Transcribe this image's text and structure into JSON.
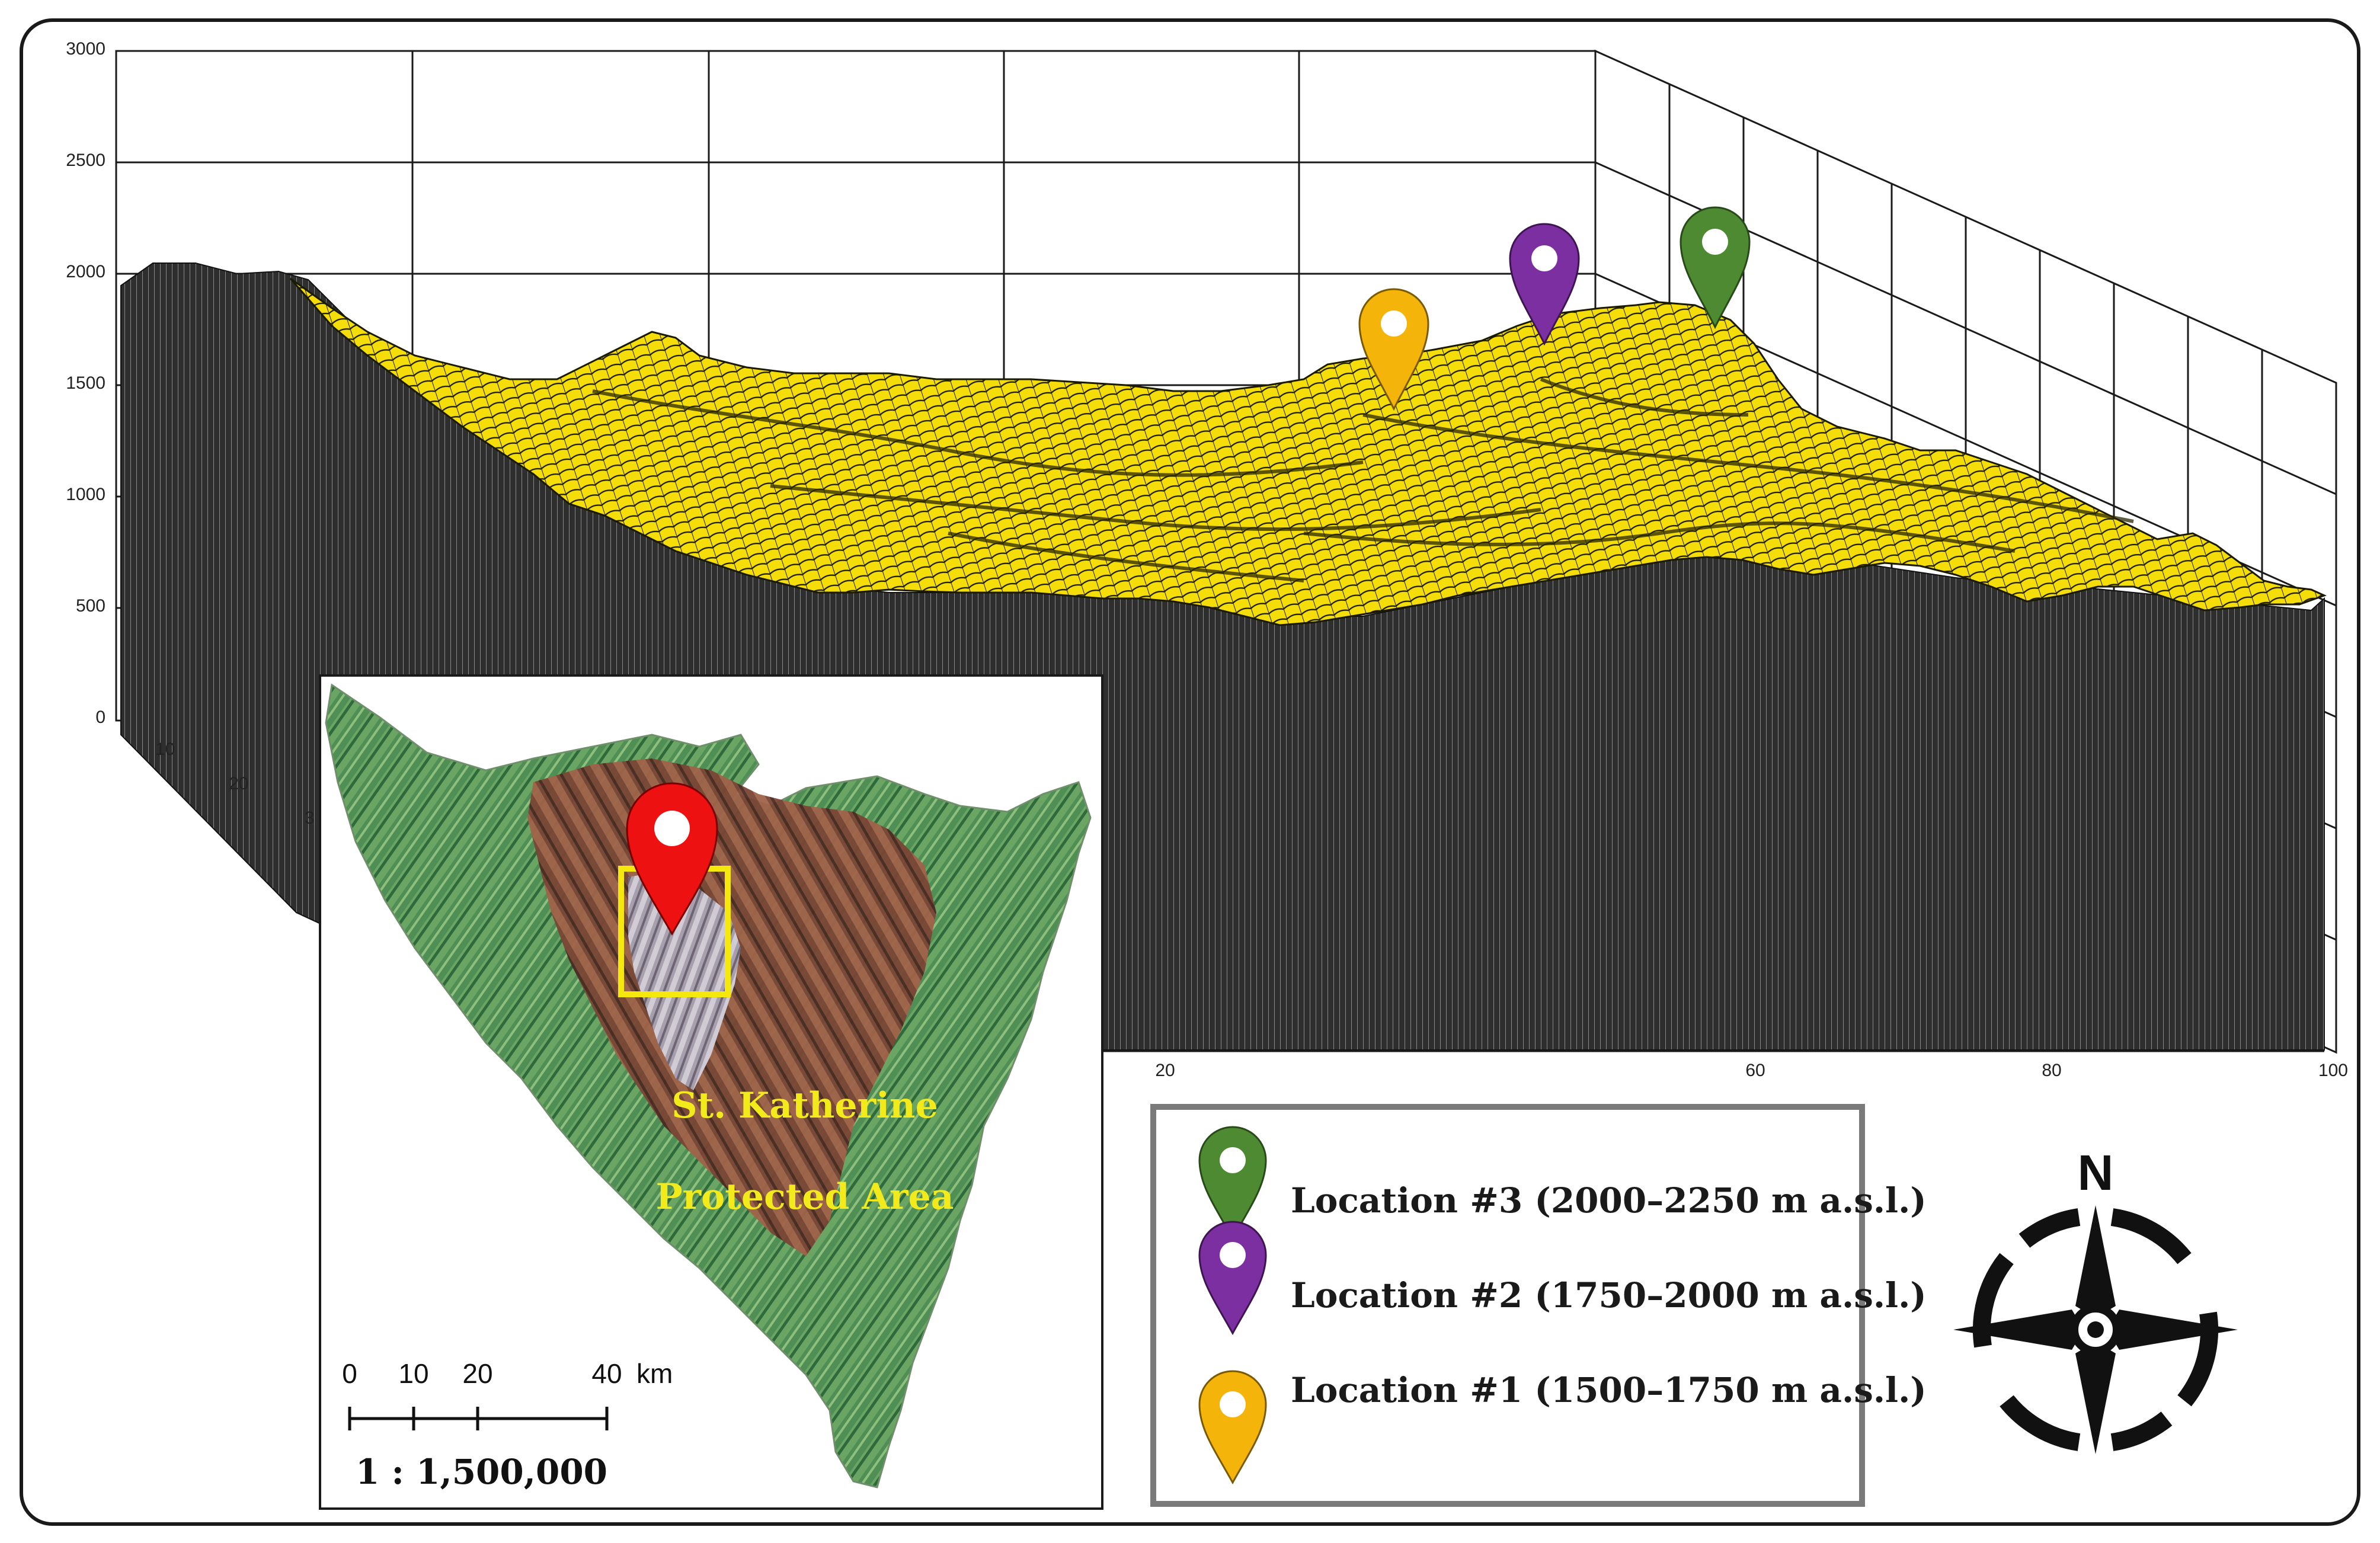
{
  "profile": {
    "y_axis_ticks": [
      "0",
      "500",
      "1000",
      "1500",
      "2000",
      "2500",
      "3000"
    ],
    "left_depth_ticks": [
      "10",
      "20",
      "3"
    ],
    "bottom_axis_ticks": [
      "20",
      "60",
      "80",
      "100"
    ]
  },
  "markers": [
    {
      "name": "Location #1",
      "color": "#f5b40a"
    },
    {
      "name": "Location #2",
      "color": "#7b2fa0"
    },
    {
      "name": "Location #3",
      "color": "#4e8a32"
    }
  ],
  "inset_map": {
    "area_label_line1": "St. Katherine",
    "area_label_line2": "Protected Area",
    "marker_color": "#ee1111",
    "study_box_color": "#f5e80c",
    "scale_ticks": [
      "0",
      "10",
      "20",
      "40"
    ],
    "scale_unit": "km",
    "scale_ratio": "1 : 1,500,000"
  },
  "legend": {
    "items": [
      {
        "label": "Location #3 (2000–2250 m a.s.l.)",
        "color": "#4e8a32"
      },
      {
        "label": "Location #2 (1750–2000 m a.s.l.)",
        "color": "#7b2fa0"
      },
      {
        "label": "Location #1 (1500–1750 m a.s.l.)",
        "color": "#f5b40a"
      }
    ]
  },
  "compass": {
    "north_label": "N"
  },
  "colors": {
    "terrain_surface": "#f2dc00",
    "terrain_mesh": "#1a1a00",
    "profile_wall": "#2b2b2b",
    "grid": "#222222"
  }
}
